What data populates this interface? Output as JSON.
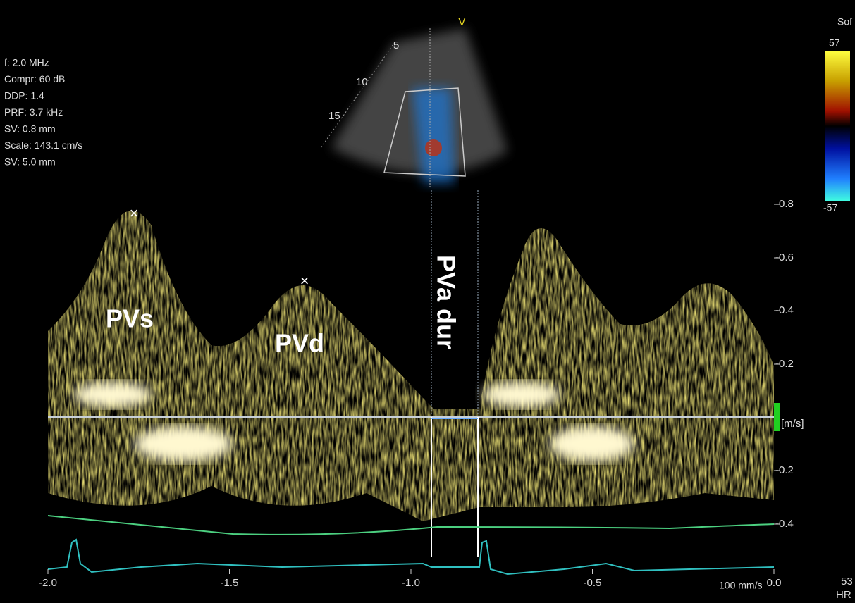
{
  "header": {
    "view_marker": "V",
    "preset": "Sof",
    "parameters": [
      "f: 2.0 MHz",
      "Compr: 60 dB",
      "DDP: 1.4",
      "PRF: 3.7 kHz",
      "SV: 0.8 mm",
      "Scale: 143.1 cm/s",
      "SV: 5.0 mm"
    ]
  },
  "sector": {
    "depth_labels": [
      "5",
      "10",
      "15"
    ]
  },
  "color_bar": {
    "top": "57",
    "bottom": "-57"
  },
  "spectrum": {
    "annotations": [
      "PVs",
      "PVd",
      "PVa dur"
    ],
    "peak_markers": [
      "×",
      "×"
    ],
    "velocity_ticks": [
      "-0.8",
      "-0.6",
      "-0.4",
      "-0.2",
      "-0.2",
      "-0.4"
    ],
    "velocity_unit": "[m/s]",
    "time_ticks": [
      "-2.0",
      "-1.5",
      "-1.0",
      "-0.5",
      "0.0"
    ],
    "sweep_speed": "100 mm/s"
  },
  "footer": {
    "heart_rate": "53",
    "heart_rate_label": "HR"
  }
}
